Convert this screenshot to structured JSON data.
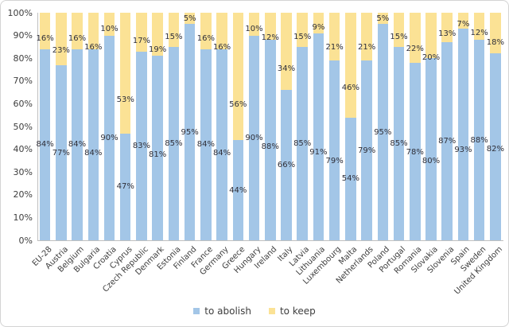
{
  "chart_data": {
    "type": "bar",
    "stacked": true,
    "title": "",
    "xlabel": "",
    "ylabel": "",
    "ylim": [
      0,
      100
    ],
    "grid": false,
    "legend_position": "bottom",
    "value_suffix": "%",
    "y_tick_labels": [
      "0%",
      "10%",
      "20%",
      "30%",
      "40%",
      "50%",
      "60%",
      "70%",
      "80%",
      "90%",
      "100%"
    ],
    "y_tick_values": [
      0,
      10,
      20,
      30,
      40,
      50,
      60,
      70,
      80,
      90,
      100
    ],
    "categories": [
      "EU-28",
      "Austria",
      "Belgium",
      "Bulgaria",
      "Croatia",
      "Cyprus",
      "Czech Republic",
      "Denmark",
      "Estonia",
      "Finland",
      "France",
      "Germany",
      "Greece",
      "Hungary",
      "Ireland",
      "Italy",
      "Latvia",
      "Lithuania",
      "Luxembourg",
      "Malta",
      "Netherlands",
      "Poland",
      "Portugal",
      "Romania",
      "Slovakia",
      "Slovenia",
      "Spain",
      "Sweden",
      "United Kingdom"
    ],
    "series": [
      {
        "name": "to abolish",
        "color": "#a3c6e7",
        "values": [
          84,
          77,
          84,
          84,
          90,
          47,
          83,
          81,
          85,
          95,
          84,
          84,
          44,
          90,
          88,
          66,
          85,
          91,
          79,
          54,
          79,
          95,
          85,
          78,
          80,
          87,
          93,
          88,
          82
        ]
      },
      {
        "name": "to keep",
        "color": "#fbe295",
        "values": [
          16,
          23,
          16,
          16,
          10,
          53,
          17,
          19,
          15,
          5,
          16,
          16,
          56,
          10,
          12,
          34,
          15,
          9,
          21,
          46,
          21,
          5,
          15,
          22,
          20,
          13,
          7,
          12,
          18
        ]
      }
    ]
  },
  "style": {
    "label_color": "#2e2e38",
    "axis_color": "#bfbfbf",
    "axis_text_color": "#3d3d3d"
  }
}
